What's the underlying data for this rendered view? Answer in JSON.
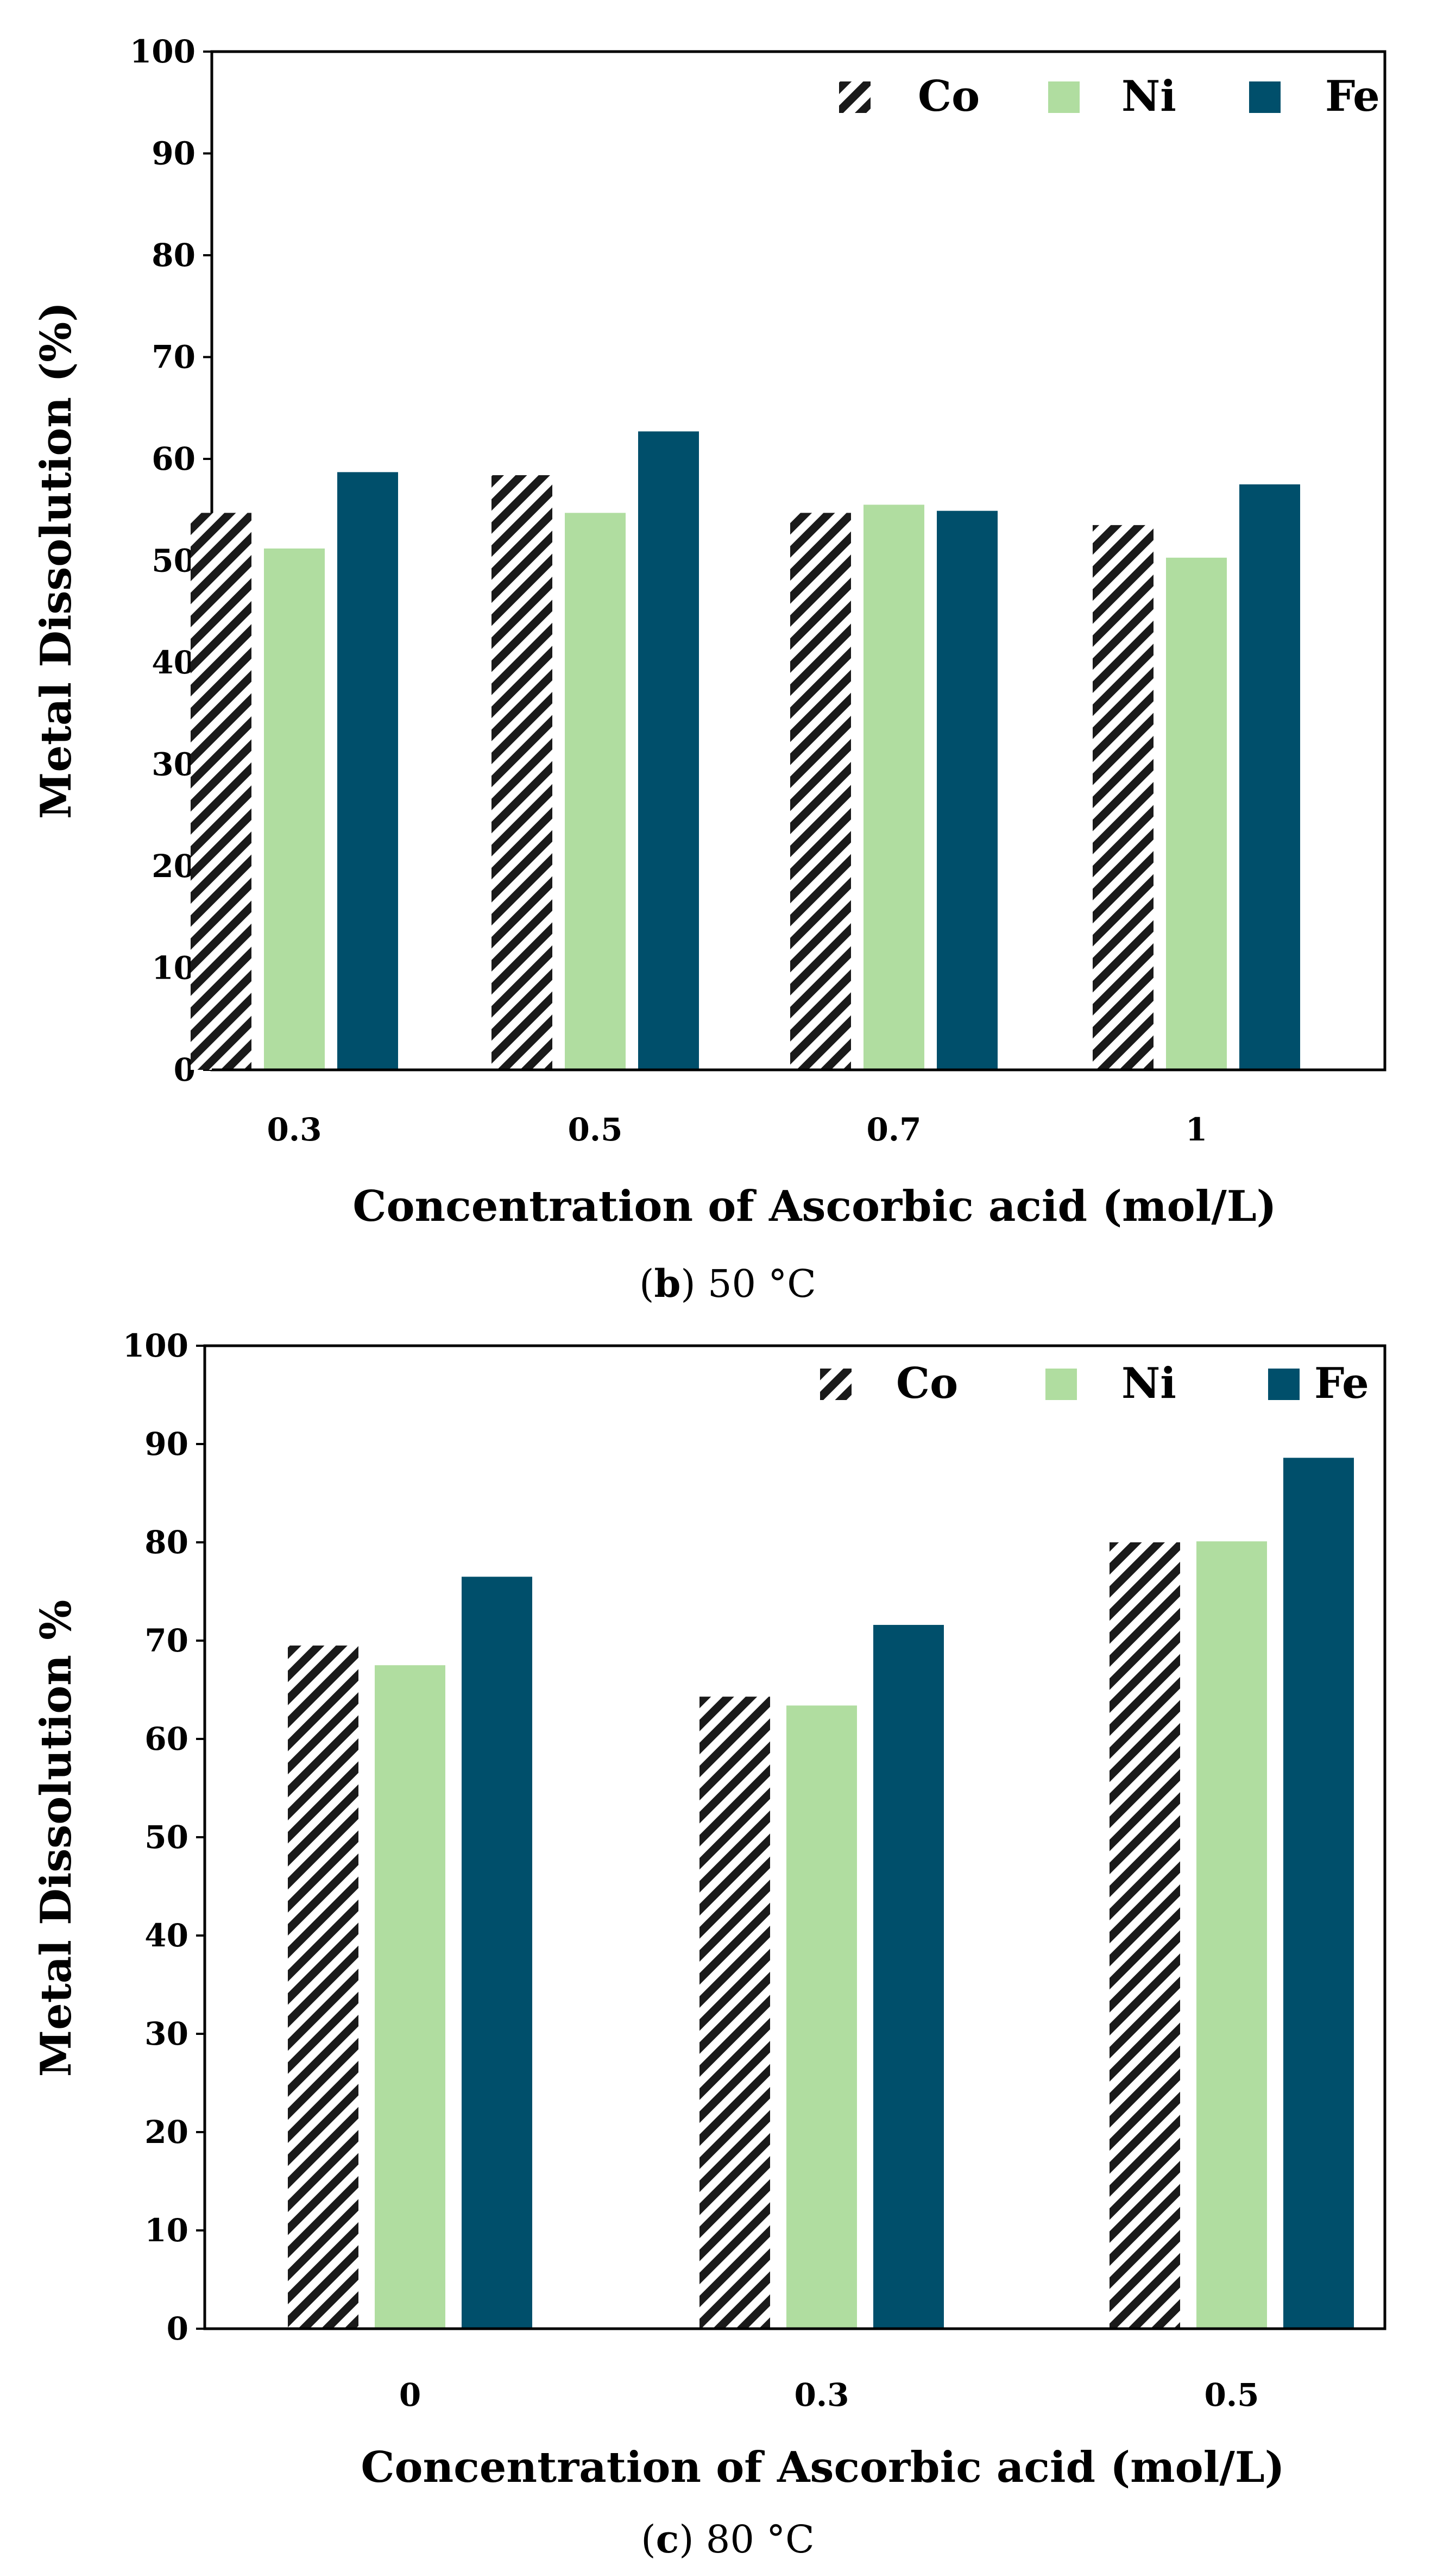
{
  "colors": {
    "co": "#1a1a1a",
    "ni": "#b0dda0",
    "fe": "#004f6b"
  },
  "chart_data": [
    {
      "type": "bar",
      "categories": [
        "0.3",
        "0.5",
        "0.7",
        "1"
      ],
      "series": [
        {
          "name": "Co",
          "values": [
            54.7,
            58.4,
            54.7,
            53.5
          ]
        },
        {
          "name": "Ni",
          "values": [
            51.2,
            54.7,
            55.5,
            50.3
          ]
        },
        {
          "name": "Fe",
          "values": [
            58.7,
            62.7,
            54.9,
            57.5
          ]
        }
      ],
      "title": "",
      "xlabel": "Concentration of Ascorbic acid (mol/L)",
      "ylabel": "Metal Dissolution (%)",
      "ylim": [
        0,
        100
      ],
      "yticks": [
        0,
        10,
        20,
        30,
        40,
        50,
        60,
        70,
        80,
        90,
        100
      ],
      "grid": false,
      "legend": "top-right",
      "caption_letter": "b",
      "caption_text": "50 °C"
    },
    {
      "type": "bar",
      "categories": [
        "0",
        "0.3",
        "0.5"
      ],
      "series": [
        {
          "name": "Co",
          "values": [
            69.5,
            64.3,
            80.0
          ]
        },
        {
          "name": "Ni",
          "values": [
            67.5,
            63.4,
            80.1
          ]
        },
        {
          "name": "Fe",
          "values": [
            76.5,
            71.6,
            88.6
          ]
        }
      ],
      "title": "",
      "xlabel": "Concentration of Ascorbic acid (mol/L)",
      "ylabel": "Metal Dissolution %",
      "ylim": [
        0,
        100
      ],
      "yticks": [
        0,
        10,
        20,
        30,
        40,
        50,
        60,
        70,
        80,
        90,
        100
      ],
      "grid": false,
      "legend": "top-right",
      "caption_letter": "c",
      "caption_text": "80 °C"
    }
  ]
}
